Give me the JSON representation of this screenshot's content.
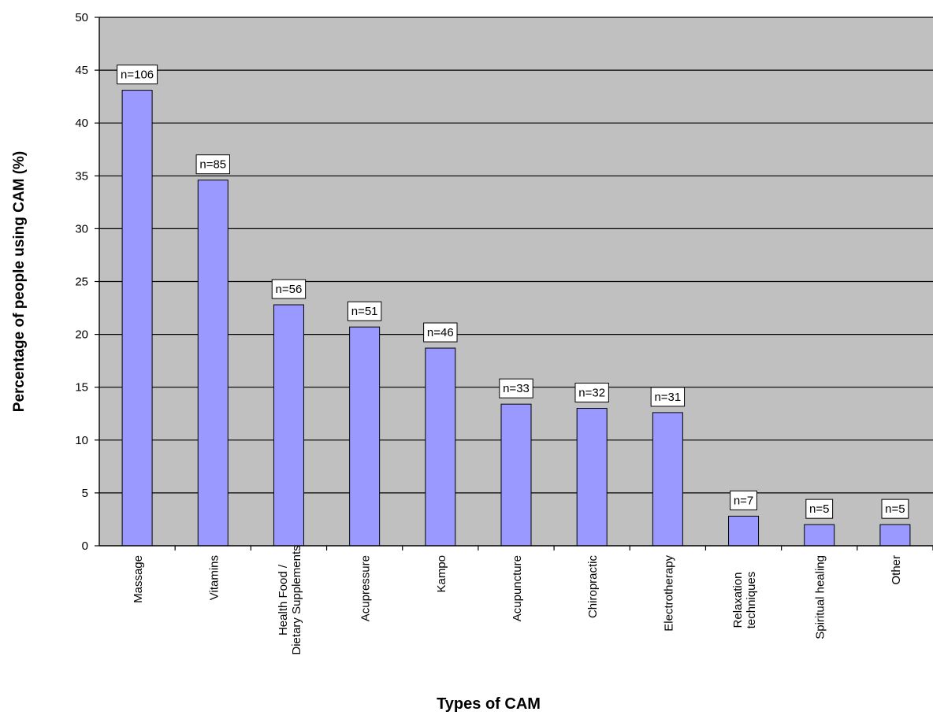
{
  "chart_data": {
    "type": "bar",
    "title": "",
    "xlabel": "Types of CAM",
    "ylabel": "Percentage of people using CAM (%)",
    "ylim": [
      0,
      50
    ],
    "yticks": [
      0,
      5,
      10,
      15,
      20,
      25,
      30,
      35,
      40,
      45,
      50
    ],
    "grid": true,
    "legend": "none",
    "colors": {
      "plot_background": "#c0c0c0",
      "bar_fill": "#9999ff",
      "bar_stroke": "#000000",
      "gridline": "#000000"
    },
    "categories": [
      [
        "Massage"
      ],
      [
        "Vitamins"
      ],
      [
        "Health Food /",
        "Dietary Supplements"
      ],
      [
        "Acupressure"
      ],
      [
        "Kampo"
      ],
      [
        "Acupuncture"
      ],
      [
        "Chiropractic"
      ],
      [
        "Electrotherapy"
      ],
      [
        "Relaxation",
        "techniques"
      ],
      [
        "Spiritual healing"
      ],
      [
        "Other"
      ]
    ],
    "values": [
      43.1,
      34.6,
      22.8,
      20.7,
      18.7,
      13.4,
      13.0,
      12.6,
      2.8,
      2.0,
      2.0
    ],
    "data_labels": [
      "n=106",
      "n=85",
      "n=56",
      "n=51",
      "n=46",
      "n=33",
      "n=32",
      "n=31",
      "n=7",
      "n=5",
      "n=5"
    ]
  }
}
